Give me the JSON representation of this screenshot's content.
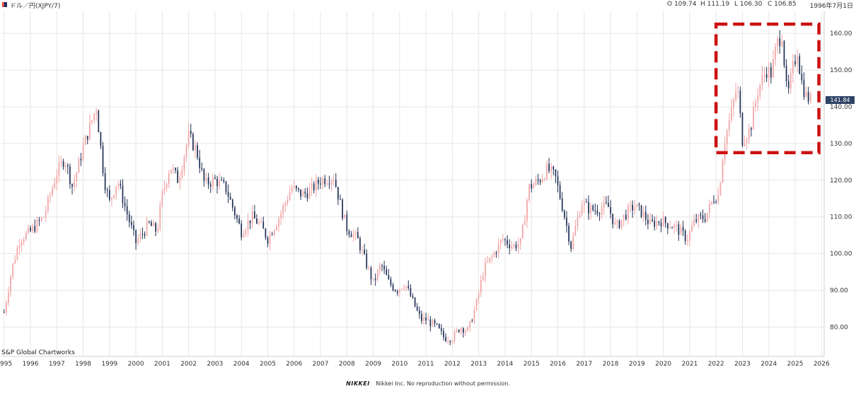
{
  "header": {
    "title": "ドル／円(XJPY/7)",
    "open": "O 109.74",
    "high": "H 111.19",
    "low": "L 106.30",
    "close": "C 106.85",
    "date": "1996年7月1日"
  },
  "brand": "S&P Global Chartworks",
  "footer": {
    "logo": "NIKKEI",
    "notice": "Nikkei Inc. No reproduction without permission."
  },
  "last_price_label": "141.84",
  "colors": {
    "up": "#f2a3a3",
    "down": "#1f2f55",
    "grid": "#e6e6e6",
    "highlight": "#cc1111"
  },
  "chart_data": {
    "type": "candlestick",
    "title": "ドル／円(XJPY/7)",
    "x_ticks": [
      "1995",
      "1996",
      "1997",
      "1998",
      "1999",
      "2000",
      "2001",
      "2002",
      "2003",
      "2004",
      "2005",
      "2006",
      "2007",
      "2008",
      "2009",
      "2010",
      "2011",
      "2012",
      "2013",
      "2014",
      "2015",
      "2016",
      "2017",
      "2018",
      "2019",
      "2020",
      "2021",
      "2022",
      "2023",
      "2024",
      "2025",
      "2026"
    ],
    "y_ticks": [
      "80.00",
      "90.00",
      "100.00",
      "110.00",
      "120.00",
      "130.00",
      "140.00",
      "150.00",
      "160.00"
    ],
    "ylim": [
      72,
      166
    ],
    "xlim": [
      1994.9,
      2026.1
    ],
    "last_price": 141.84,
    "highlight_region": {
      "x_from": 2022.0,
      "x_to": 2025.9,
      "y_from": 127.5,
      "y_to": 162.5
    },
    "close_path": [
      [
        1995.0,
        84
      ],
      [
        1995.3,
        96
      ],
      [
        1995.6,
        104
      ],
      [
        1996.0,
        106
      ],
      [
        1996.5,
        110
      ],
      [
        1997.0,
        122
      ],
      [
        1997.3,
        126
      ],
      [
        1997.6,
        118
      ],
      [
        1998.0,
        129
      ],
      [
        1998.5,
        140
      ],
      [
        1998.8,
        120
      ],
      [
        1999.0,
        114
      ],
      [
        1999.3,
        120
      ],
      [
        1999.7,
        110
      ],
      [
        2000.0,
        103
      ],
      [
        2000.5,
        108
      ],
      [
        2000.8,
        106
      ],
      [
        2001.0,
        116
      ],
      [
        2001.3,
        124
      ],
      [
        2001.6,
        120
      ],
      [
        2002.0,
        132
      ],
      [
        2002.3,
        128
      ],
      [
        2002.6,
        119
      ],
      [
        2003.0,
        120
      ],
      [
        2003.4,
        118
      ],
      [
        2003.8,
        110
      ],
      [
        2004.0,
        106
      ],
      [
        2004.4,
        110
      ],
      [
        2004.7,
        108
      ],
      [
        2005.0,
        104
      ],
      [
        2005.5,
        111
      ],
      [
        2005.9,
        118
      ],
      [
        2006.3,
        116
      ],
      [
        2006.6,
        117
      ],
      [
        2007.0,
        120
      ],
      [
        2007.5,
        121
      ],
      [
        2007.8,
        112
      ],
      [
        2008.0,
        107
      ],
      [
        2008.4,
        104
      ],
      [
        2008.8,
        96
      ],
      [
        2009.0,
        92
      ],
      [
        2009.3,
        97
      ],
      [
        2009.6,
        92
      ],
      [
        2009.9,
        90
      ],
      [
        2010.2,
        92
      ],
      [
        2010.5,
        87
      ],
      [
        2010.8,
        82
      ],
      [
        2011.0,
        82
      ],
      [
        2011.4,
        80
      ],
      [
        2011.7,
        77
      ],
      [
        2012.0,
        77
      ],
      [
        2012.3,
        80
      ],
      [
        2012.6,
        79
      ],
      [
        2012.9,
        86
      ],
      [
        2013.2,
        96
      ],
      [
        2013.5,
        99
      ],
      [
        2013.9,
        104
      ],
      [
        2014.3,
        102
      ],
      [
        2014.6,
        103
      ],
      [
        2014.9,
        118
      ],
      [
        2015.3,
        120
      ],
      [
        2015.6,
        123
      ],
      [
        2015.9,
        121
      ],
      [
        2016.2,
        112
      ],
      [
        2016.5,
        102
      ],
      [
        2016.9,
        114
      ],
      [
        2017.2,
        112
      ],
      [
        2017.5,
        112
      ],
      [
        2017.9,
        113
      ],
      [
        2018.2,
        107
      ],
      [
        2018.6,
        111
      ],
      [
        2018.9,
        113
      ],
      [
        2019.2,
        111
      ],
      [
        2019.5,
        108
      ],
      [
        2019.9,
        109
      ],
      [
        2020.2,
        108
      ],
      [
        2020.5,
        107
      ],
      [
        2020.9,
        104
      ],
      [
        2021.2,
        109
      ],
      [
        2021.6,
        110
      ],
      [
        2021.9,
        115
      ],
      [
        2022.1,
        116
      ],
      [
        2022.3,
        130
      ],
      [
        2022.6,
        139
      ],
      [
        2022.8,
        146
      ],
      [
        2023.0,
        131
      ],
      [
        2023.3,
        134
      ],
      [
        2023.6,
        145
      ],
      [
        2023.9,
        150
      ],
      [
        2024.1,
        149
      ],
      [
        2024.3,
        157
      ],
      [
        2024.5,
        160
      ],
      [
        2024.7,
        142
      ],
      [
        2024.9,
        150
      ],
      [
        2025.1,
        156
      ],
      [
        2025.2,
        148
      ],
      [
        2025.4,
        143
      ],
      [
        2025.6,
        141.84
      ]
    ]
  }
}
